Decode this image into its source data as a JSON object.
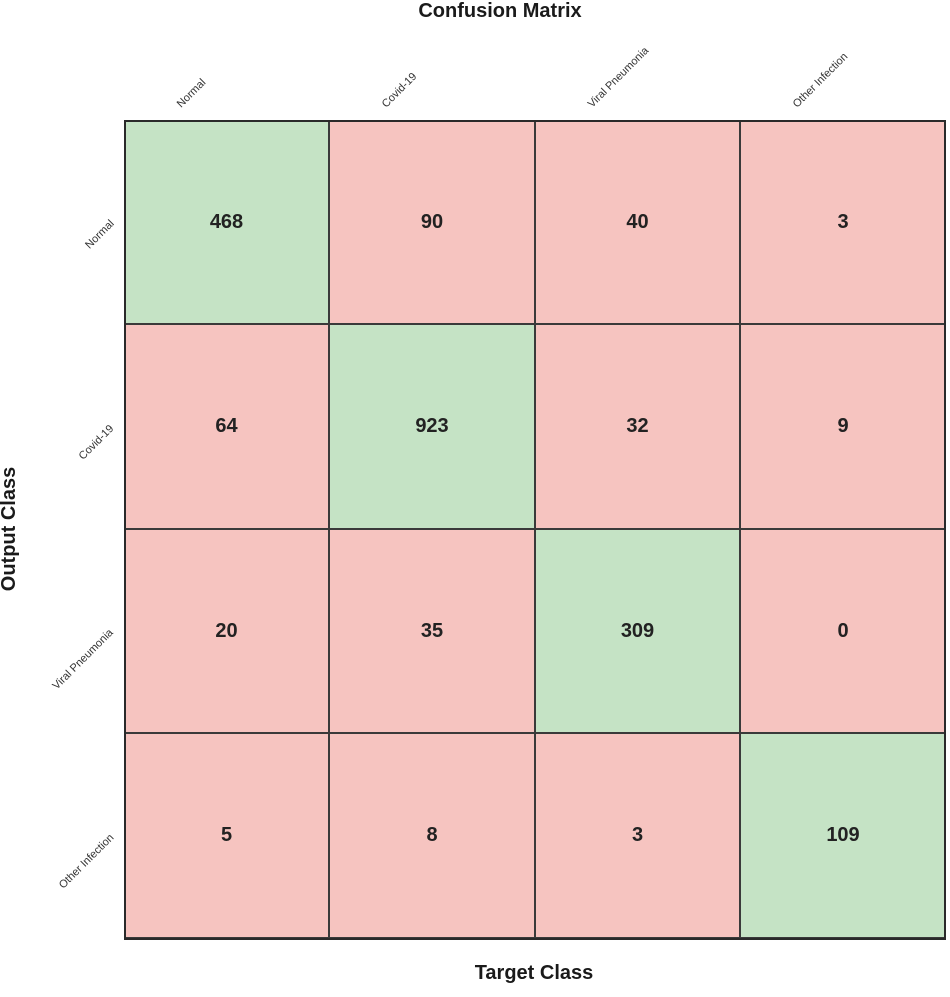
{
  "chart_data": {
    "type": "heatmap",
    "title": "Confusion Matrix",
    "xlabel": "Target Class",
    "ylabel": "Output Class",
    "x_categories": [
      "Normal",
      "Covid-19",
      "Viral Pneumonia",
      "Other Infection"
    ],
    "y_categories": [
      "Normal",
      "Covid-19",
      "Viral Pneumonia",
      "Other Infection"
    ],
    "values": [
      [
        468,
        90,
        40,
        3
      ],
      [
        64,
        923,
        32,
        9
      ],
      [
        20,
        35,
        309,
        0
      ],
      [
        5,
        8,
        3,
        109
      ]
    ],
    "colors": {
      "diagonal": "#c5e3c5",
      "off_diagonal": "#f6c4c0",
      "border": "#3a3a3a"
    }
  }
}
